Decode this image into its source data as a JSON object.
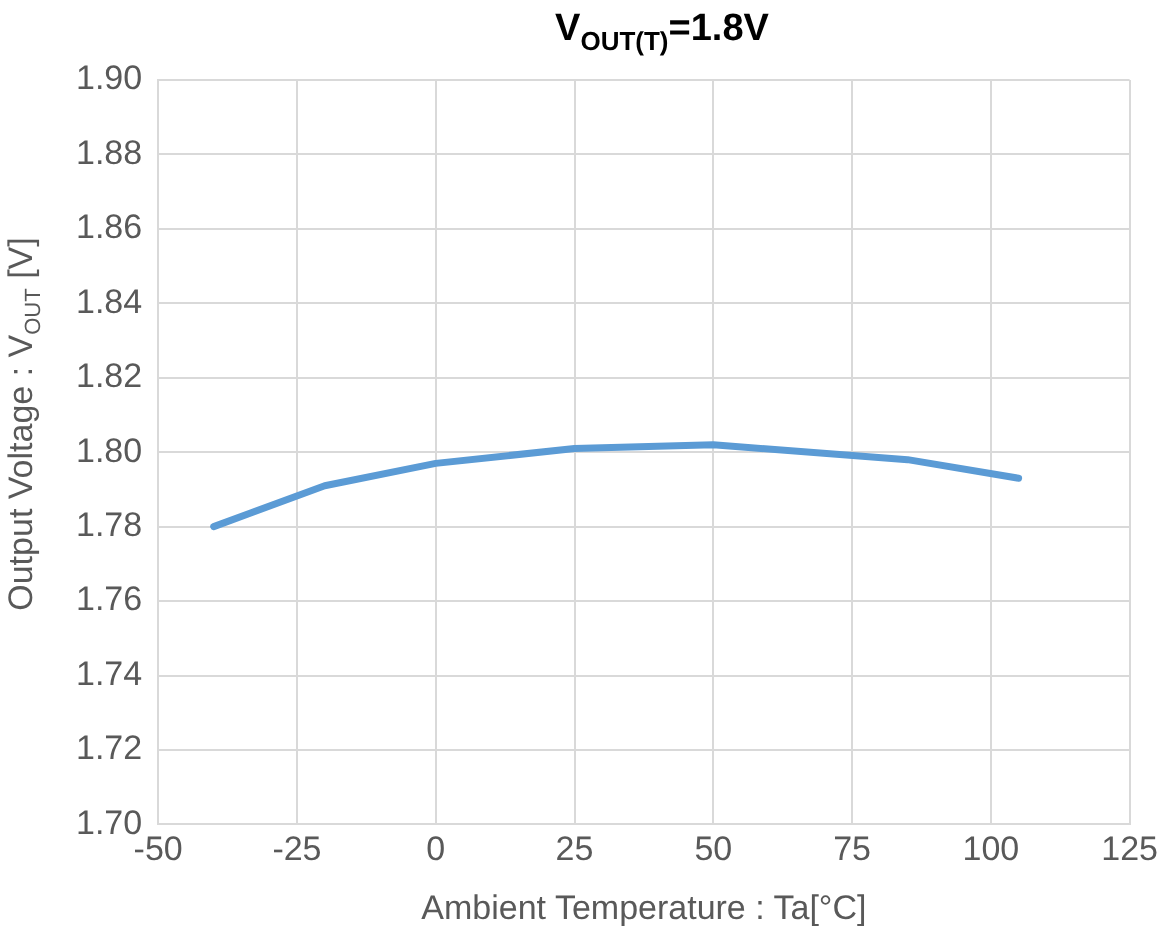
{
  "chart_data": {
    "type": "line",
    "title": "V$_{OUT(T)}$=1.8V",
    "xlabel": "Ambient Temperature : Ta[°C]",
    "ylabel": "Output Voltage : V$_{OUT}$ [V]",
    "x": [
      -40,
      -20,
      0,
      25,
      50,
      85,
      105
    ],
    "series": [
      {
        "color": "#5b9bd5",
        "values": [
          1.78,
          1.791,
          1.797,
          1.801,
          1.802,
          1.798,
          1.793
        ]
      }
    ],
    "xlim": [
      -50,
      125
    ],
    "xticks": [
      -50,
      -25,
      0,
      25,
      50,
      75,
      100,
      125
    ],
    "ylim": [
      1.7,
      1.9
    ],
    "yticks": [
      {
        "value": 1.7,
        "label": "1.70"
      },
      1.72,
      1.74,
      1.76,
      1.78,
      {
        "value": 1.8,
        "label": "1.80"
      },
      1.82,
      1.84,
      1.86,
      1.88,
      {
        "value": 1.9,
        "label": "1.90"
      }
    ],
    "grid": true,
    "legend": false,
    "marker": "none",
    "line_style": "solid"
  }
}
